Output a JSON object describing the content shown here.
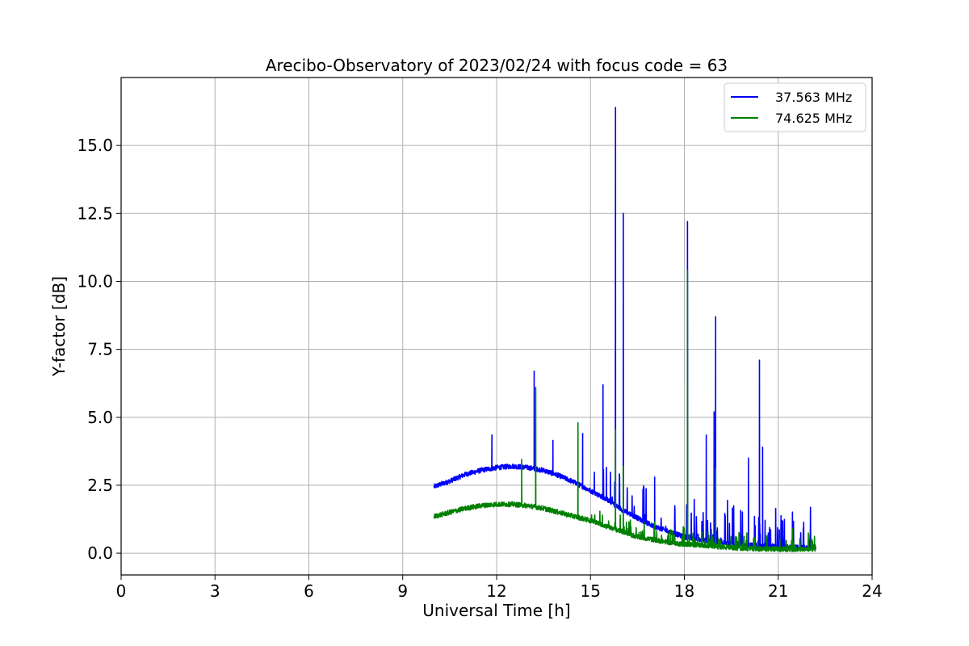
{
  "chart_data": {
    "type": "line",
    "title": "Arecibo-Observatory of 2023/02/24 with focus code = 63",
    "xlabel": "Universal Time [h]",
    "ylabel": "Y-factor [dB]",
    "xlim": [
      0,
      24
    ],
    "ylim": [
      -0.8,
      17.5
    ],
    "xticks": [
      0,
      3,
      6,
      9,
      12,
      15,
      18,
      21,
      24
    ],
    "xtick_labels": [
      "0",
      "3",
      "6",
      "9",
      "12",
      "15",
      "18",
      "21",
      "24"
    ],
    "yticks": [
      0,
      2.5,
      5,
      7.5,
      10,
      12.5,
      15
    ],
    "ytick_labels": [
      "0.0",
      "2.5",
      "5.0",
      "7.5",
      "10.0",
      "12.5",
      "15.0"
    ],
    "grid": true,
    "legend_position": "top-right",
    "series": [
      {
        "name": "37.563 MHz",
        "color": "#0000ff",
        "baseline": [
          [
            10.0,
            2.45
          ],
          [
            10.5,
            2.65
          ],
          [
            11.0,
            2.9
          ],
          [
            11.5,
            3.05
          ],
          [
            12.0,
            3.15
          ],
          [
            12.5,
            3.2
          ],
          [
            13.0,
            3.15
          ],
          [
            13.5,
            3.05
          ],
          [
            14.0,
            2.85
          ],
          [
            14.5,
            2.6
          ],
          [
            15.0,
            2.3
          ],
          [
            15.5,
            2.0
          ],
          [
            16.0,
            1.6
          ],
          [
            16.5,
            1.3
          ],
          [
            17.0,
            1.0
          ],
          [
            17.5,
            0.8
          ],
          [
            18.0,
            0.6
          ],
          [
            18.5,
            0.5
          ],
          [
            19.0,
            0.4
          ],
          [
            19.5,
            0.35
          ],
          [
            20.0,
            0.3
          ],
          [
            20.5,
            0.28
          ],
          [
            21.0,
            0.25
          ],
          [
            21.5,
            0.22
          ],
          [
            22.2,
            0.22
          ]
        ],
        "spikes": [
          [
            11.85,
            4.35
          ],
          [
            13.2,
            6.7
          ],
          [
            13.8,
            4.15
          ],
          [
            14.75,
            4.4
          ],
          [
            15.4,
            6.2
          ],
          [
            15.8,
            16.4
          ],
          [
            16.05,
            12.5
          ],
          [
            17.05,
            2.8
          ],
          [
            18.1,
            12.2
          ],
          [
            18.7,
            4.35
          ],
          [
            18.95,
            5.2
          ],
          [
            19.0,
            8.7
          ],
          [
            20.05,
            3.5
          ],
          [
            20.4,
            7.1
          ],
          [
            20.5,
            3.9
          ]
        ]
      },
      {
        "name": "74.625 MHz",
        "color": "#008000",
        "baseline": [
          [
            10.0,
            1.35
          ],
          [
            10.5,
            1.5
          ],
          [
            11.0,
            1.65
          ],
          [
            11.5,
            1.75
          ],
          [
            12.0,
            1.8
          ],
          [
            12.5,
            1.8
          ],
          [
            13.0,
            1.75
          ],
          [
            13.5,
            1.65
          ],
          [
            14.0,
            1.5
          ],
          [
            14.5,
            1.35
          ],
          [
            15.0,
            1.2
          ],
          [
            15.5,
            1.0
          ],
          [
            16.0,
            0.8
          ],
          [
            16.5,
            0.6
          ],
          [
            17.0,
            0.5
          ],
          [
            17.5,
            0.4
          ],
          [
            18.0,
            0.33
          ],
          [
            18.5,
            0.3
          ],
          [
            19.0,
            0.25
          ],
          [
            19.5,
            0.2
          ],
          [
            20.0,
            0.18
          ],
          [
            20.5,
            0.15
          ],
          [
            21.0,
            0.15
          ],
          [
            21.5,
            0.15
          ],
          [
            22.2,
            0.15
          ]
        ],
        "spikes": [
          [
            12.8,
            3.45
          ],
          [
            13.25,
            6.1
          ],
          [
            14.6,
            4.8
          ],
          [
            15.8,
            4.55
          ],
          [
            16.05,
            3.2
          ],
          [
            18.1,
            10.4
          ],
          [
            19.0,
            3.1
          ],
          [
            21.45,
            0.9
          ]
        ]
      }
    ]
  }
}
